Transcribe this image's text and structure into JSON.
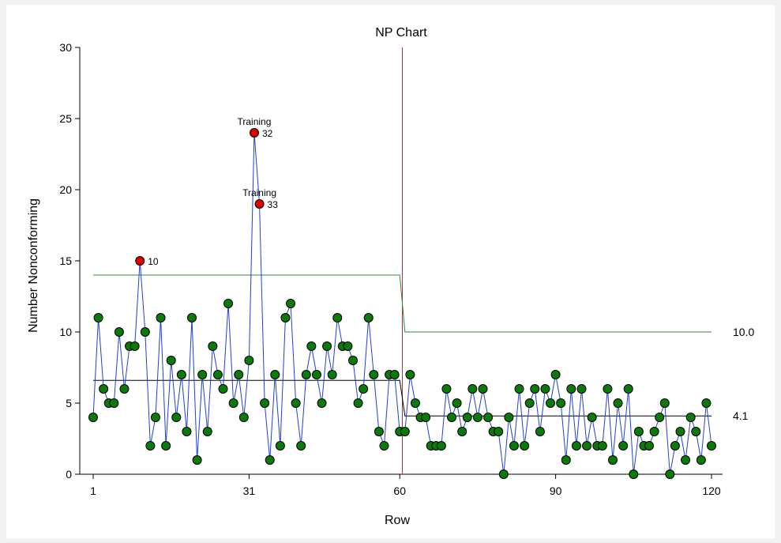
{
  "chart_data": {
    "type": "line",
    "title": "NP Chart",
    "xlabel": "Row",
    "ylabel": "Number Nonconforming",
    "xlim": [
      1,
      120
    ],
    "ylim": [
      0,
      30
    ],
    "x_ticks": [
      1,
      31,
      60,
      90,
      120
    ],
    "y_ticks": [
      0,
      5,
      10,
      15,
      20,
      25,
      30
    ],
    "phase_break_after_row": 60,
    "center_lines": [
      {
        "from": 1,
        "to": 60,
        "value": 6.6
      },
      {
        "from": 61,
        "to": 120,
        "value": 4.1
      }
    ],
    "ucl_lines": [
      {
        "from": 1,
        "to": 60,
        "value": 14.0
      },
      {
        "from": 61,
        "to": 120,
        "value": 10.0
      }
    ],
    "limit_labels": [
      {
        "text": "10.0",
        "value": 10.0
      },
      {
        "text": "4.1",
        "value": 4.1
      }
    ],
    "series": [
      {
        "x_start": 1,
        "values": [
          4,
          11,
          6,
          5,
          5,
          10,
          6,
          9,
          9,
          15,
          10,
          2,
          4,
          11,
          2,
          8,
          4,
          7,
          3,
          11,
          1,
          7,
          3,
          9,
          7,
          6,
          12,
          5,
          7,
          4,
          8,
          24,
          19,
          5,
          1,
          7,
          2,
          11,
          12,
          5,
          2,
          7,
          9,
          7,
          5,
          9,
          7,
          11,
          9,
          9,
          8,
          5,
          6,
          11,
          7,
          3,
          2,
          7,
          7,
          3,
          3,
          7,
          5,
          4,
          4,
          2,
          2,
          2,
          6,
          4,
          5,
          3,
          4,
          6,
          4,
          6,
          4,
          3,
          3,
          0,
          4,
          2,
          6,
          2,
          5,
          6,
          3,
          6,
          5,
          7,
          5,
          1,
          6,
          2,
          6,
          2,
          4,
          2,
          2,
          6,
          1,
          5,
          2,
          6,
          0,
          3,
          2,
          2,
          3,
          4,
          5,
          0,
          2,
          3,
          1,
          4,
          3,
          1,
          5,
          2
        ]
      }
    ],
    "out_of_control": [
      {
        "row": 10,
        "label": "10",
        "note": ""
      },
      {
        "row": 32,
        "label": "32",
        "note": "Training"
      },
      {
        "row": 33,
        "label": "33",
        "note": "Training"
      }
    ],
    "colors": {
      "line": "#1f3fd8",
      "point": "#0b7a0b",
      "out_point": "#e00000",
      "ucl": "#2e8b2e",
      "center": "#000000",
      "phase": "#b03040"
    }
  }
}
